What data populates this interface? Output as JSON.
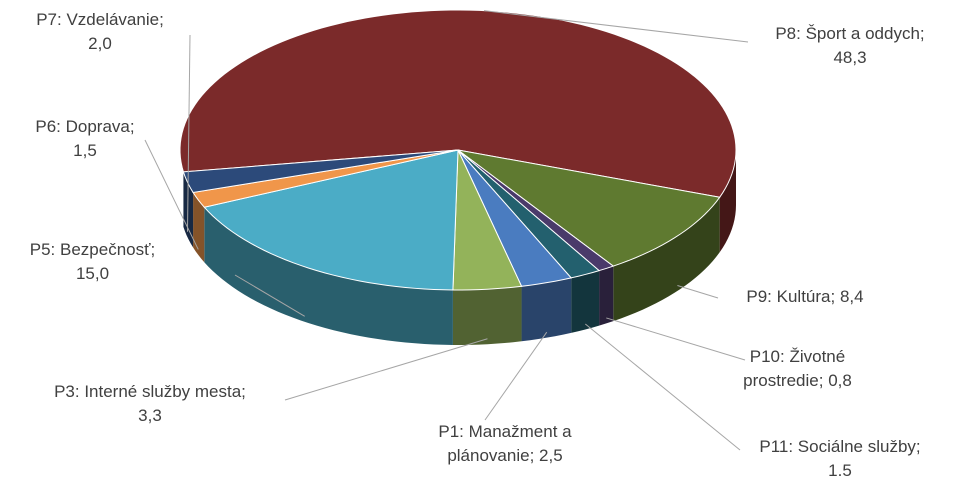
{
  "chart_data": {
    "type": "pie3d",
    "categories": [
      "P8: Šport a oddych;",
      "P9: Kultúra;",
      "P10: Životné prostredie;",
      "P11: Sociálne služby;",
      "P1: Manažment a plánovanie;",
      "P3: Interné služby mesta;",
      "P5: Bezpečnosť;",
      "P6: Doprava;",
      "P7: Vzdelávanie;"
    ],
    "values": [
      48.3,
      8.4,
      0.8,
      1.5,
      2.5,
      3.3,
      15.0,
      1.5,
      2.0
    ],
    "value_labels": [
      "48,3",
      "8,4",
      "0,8",
      "1.5",
      "2,5",
      "3,3",
      "15,0",
      "1,5",
      "2,0"
    ],
    "colors": [
      "#7b2a2a",
      "#5f7a30",
      "#4a3a6a",
      "#23606e",
      "#4a7cc0",
      "#93b35a",
      "#4bacc6",
      "#f0964a",
      "#2c4a7a"
    ]
  }
}
